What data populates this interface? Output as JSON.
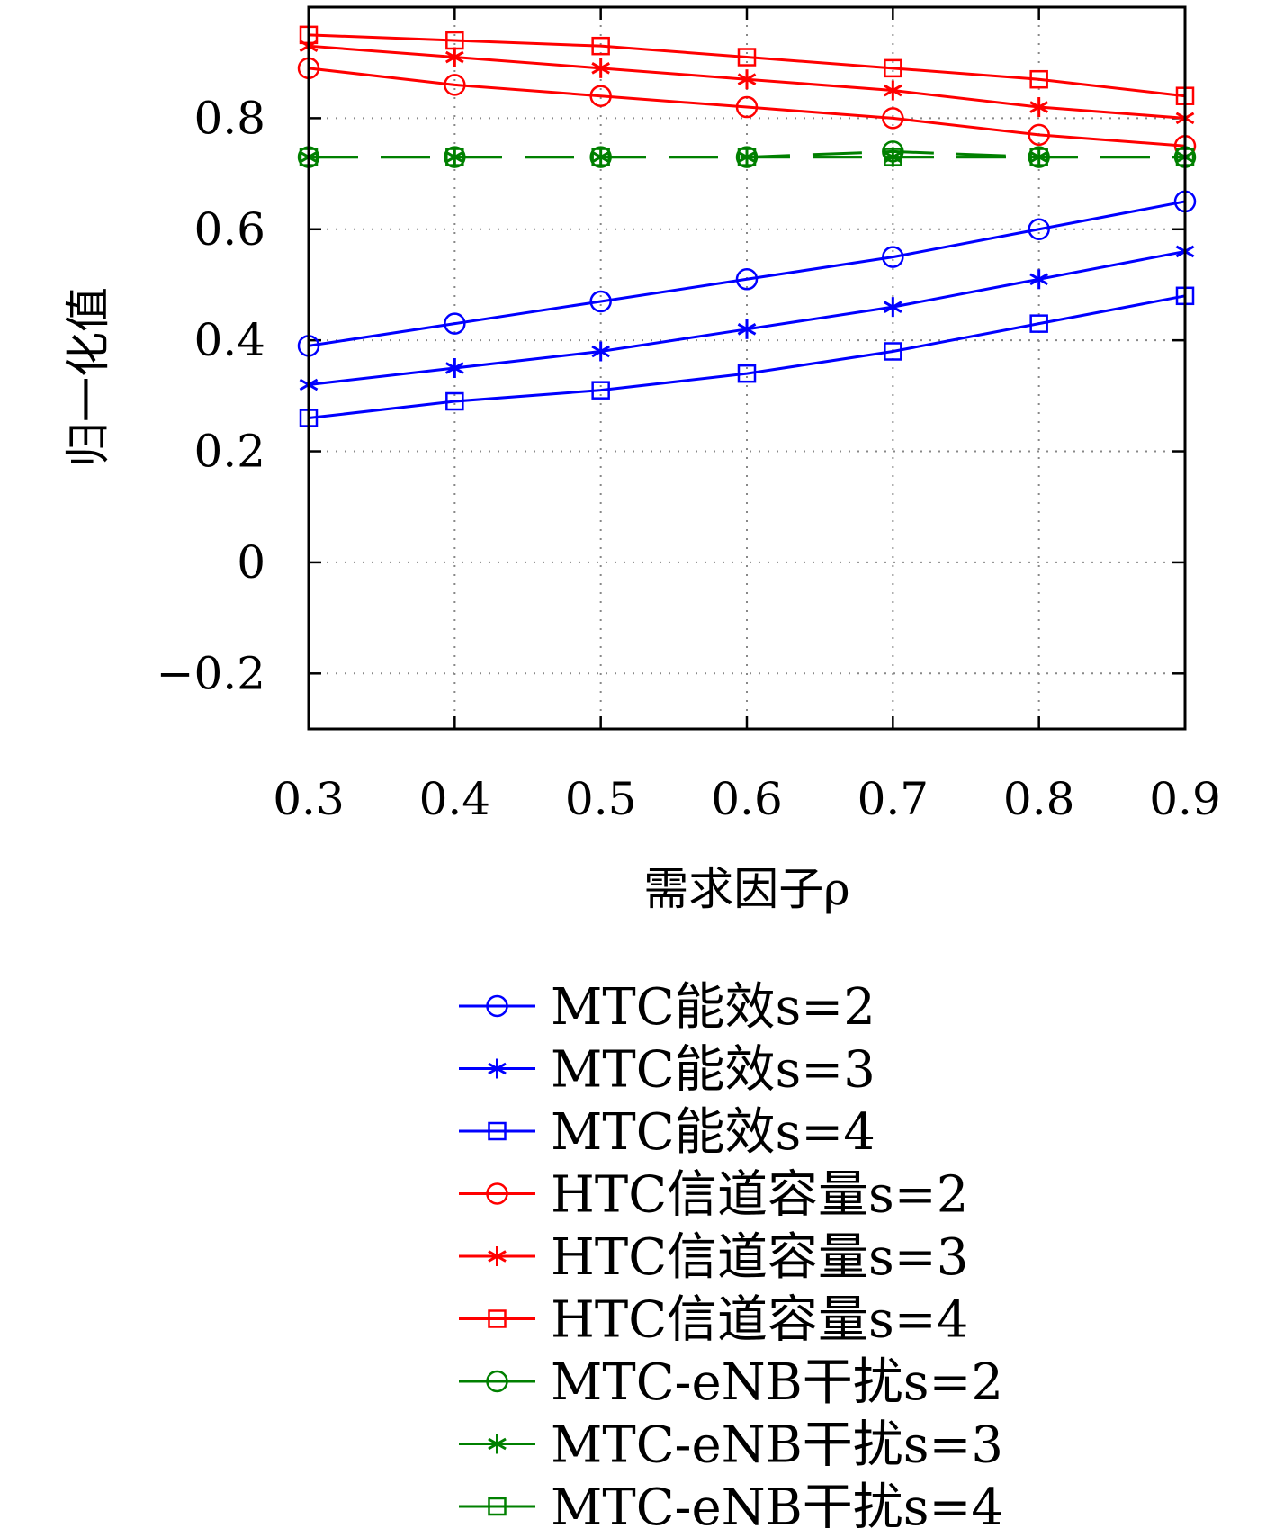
{
  "chart_data": {
    "type": "line",
    "title": "",
    "xlabel": "需求因子ρ",
    "ylabel": "归一化值",
    "x": [
      0.3,
      0.4,
      0.5,
      0.6,
      0.7,
      0.8,
      0.9
    ],
    "x_ticks": [
      "0.3",
      "0.4",
      "0.5",
      "0.6",
      "0.7",
      "0.8",
      "0.9"
    ],
    "xlim": [
      0.3,
      0.9
    ],
    "ylim": [
      -0.3,
      1.0
    ],
    "y_ticks": [
      -0.2,
      0,
      0.2,
      0.4,
      0.6,
      0.8
    ],
    "y_tick_labels": [
      "−0.2",
      "0",
      "0.2",
      "0.4",
      "0.6",
      "0.8"
    ],
    "grid": true,
    "legend_position": "bottom",
    "series": [
      {
        "name": "MTC能效s=2",
        "color": "#0000ff",
        "marker": "circle",
        "dash": "solid",
        "values": [
          0.39,
          0.43,
          0.47,
          0.51,
          0.55,
          0.6,
          0.65
        ]
      },
      {
        "name": "MTC能效s=3",
        "color": "#0000ff",
        "marker": "asterisk",
        "dash": "solid",
        "values": [
          0.32,
          0.35,
          0.38,
          0.42,
          0.46,
          0.51,
          0.56
        ]
      },
      {
        "name": "MTC能效s=4",
        "color": "#0000ff",
        "marker": "square",
        "dash": "solid",
        "values": [
          0.26,
          0.29,
          0.31,
          0.34,
          0.38,
          0.43,
          0.48
        ]
      },
      {
        "name": "HTC信道容量s=2",
        "color": "#ff0000",
        "marker": "circle",
        "dash": "solid",
        "values": [
          0.89,
          0.86,
          0.84,
          0.82,
          0.8,
          0.77,
          0.75
        ]
      },
      {
        "name": "HTC信道容量s=3",
        "color": "#ff0000",
        "marker": "asterisk",
        "dash": "solid",
        "values": [
          0.93,
          0.91,
          0.89,
          0.87,
          0.85,
          0.82,
          0.8
        ]
      },
      {
        "name": "HTC信道容量s=4",
        "color": "#ff0000",
        "marker": "square",
        "dash": "solid",
        "values": [
          0.95,
          0.94,
          0.93,
          0.91,
          0.89,
          0.87,
          0.84
        ]
      },
      {
        "name": "MTC-eNB干扰s=2",
        "color": "#008000",
        "marker": "circle",
        "dash": "dashed",
        "values": [
          0.73,
          0.73,
          0.73,
          0.73,
          0.74,
          0.73,
          0.73
        ]
      },
      {
        "name": "MTC-eNB干扰s=3",
        "color": "#008000",
        "marker": "asterisk",
        "dash": "dashed",
        "values": [
          0.73,
          0.73,
          0.73,
          0.73,
          0.73,
          0.73,
          0.73
        ]
      },
      {
        "name": "MTC-eNB干扰s=4",
        "color": "#008000",
        "marker": "square",
        "dash": "dashed",
        "values": [
          0.73,
          0.73,
          0.73,
          0.73,
          0.73,
          0.73,
          0.73
        ]
      }
    ]
  }
}
